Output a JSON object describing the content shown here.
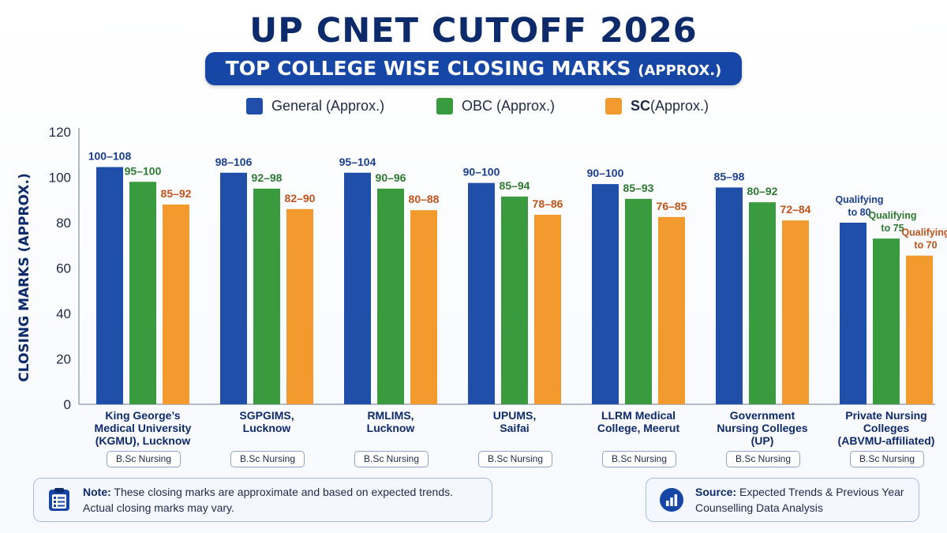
{
  "header": {
    "title": "UP CNET CUTOFF 2026",
    "subtitle_main": "TOP COLLEGE WISE CLOSING MARKS",
    "subtitle_suffix": "(APPROX.)"
  },
  "legend": [
    {
      "label": "General (Approx.)",
      "color": "#1f4fa8"
    },
    {
      "label": "OBC (Approx.)",
      "color": "#3a9a3e"
    },
    {
      "label_bold": "SC",
      "label_rest": " (Approx.)",
      "color": "#f29a2e"
    }
  ],
  "chart_data": {
    "type": "bar",
    "ylabel": "CLOSING MARKS (APPROX.)",
    "ylim": [
      0,
      120
    ],
    "yticks": [
      0,
      20,
      40,
      60,
      80,
      100,
      120
    ],
    "grid": false,
    "legend_position": "top-center",
    "categories": [
      {
        "lines": [
          "King George’s",
          "Medical University",
          "(KGMU), Lucknow"
        ],
        "tag": "B.Sc Nursing"
      },
      {
        "lines": [
          "SGPGIMS,",
          "Lucknow"
        ],
        "tag": "B.Sc Nursing"
      },
      {
        "lines": [
          "RMLIMS,",
          "Lucknow"
        ],
        "tag": "B.Sc Nursing"
      },
      {
        "lines": [
          "UPUMS,",
          "Saifai"
        ],
        "tag": "B.Sc Nursing"
      },
      {
        "lines": [
          "LLRM Medical",
          "College, Meerut"
        ],
        "tag": "B.Sc Nursing"
      },
      {
        "lines": [
          "Government",
          "Nursing Colleges",
          "(UP)"
        ],
        "tag": "B.Sc Nursing"
      },
      {
        "lines": [
          "Private Nursing",
          "Colleges",
          "(ABVMU-affiliated)"
        ],
        "tag": "B.Sc Nursing"
      }
    ],
    "series": [
      {
        "name": "General (Approx.)",
        "color": "#1f4fa8",
        "label_color": "#1a3f8f",
        "values": [
          104.5,
          102,
          102,
          97.5,
          97,
          95.5,
          80
        ],
        "labels": [
          [
            "100–108"
          ],
          [
            "98–106"
          ],
          [
            "95–104"
          ],
          [
            "90–100"
          ],
          [
            "90–100"
          ],
          [
            "85–98"
          ],
          [
            "Qualifying",
            "to 80"
          ]
        ]
      },
      {
        "name": "OBC (Approx.)",
        "color": "#3a9a3e",
        "label_color": "#2c7a2f",
        "values": [
          98,
          95,
          95,
          91.5,
          90.5,
          89,
          73
        ],
        "labels": [
          [
            "95–100"
          ],
          [
            "92–98"
          ],
          [
            "90–96"
          ],
          [
            "85–94"
          ],
          [
            "85–93"
          ],
          [
            "80–92"
          ],
          [
            "Qualifying",
            "to 75"
          ]
        ]
      },
      {
        "name": "SC (Approx.)",
        "color": "#f29a2e",
        "label_color": "#c0521a",
        "values": [
          88,
          86,
          85.5,
          83.5,
          82.5,
          81,
          65.5
        ],
        "labels": [
          [
            "85–92"
          ],
          [
            "82–90"
          ],
          [
            "80–88"
          ],
          [
            "78–86"
          ],
          [
            "76–85"
          ],
          [
            "72–84"
          ],
          [
            "Qualifying",
            "to 70"
          ]
        ]
      }
    ]
  },
  "note": {
    "label": "Note:",
    "text1": " These closing marks are approximate and based on expected trends.",
    "text2": "Actual closing marks may vary."
  },
  "source": {
    "label": "Source:",
    "text1": " Expected Trends & Previous Year",
    "text2": "Counselling Data Analysis"
  }
}
